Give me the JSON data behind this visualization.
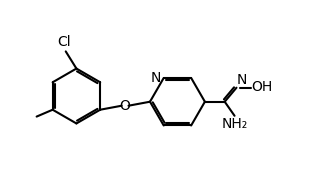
{
  "background": "#ffffff",
  "line_color": "#000000",
  "line_width": 1.5,
  "font_size": 9.5,
  "figsize": [
    3.32,
    1.92
  ],
  "dpi": 100,
  "xlim": [
    0.0,
    8.5
  ],
  "ylim": [
    0.5,
    5.5
  ]
}
